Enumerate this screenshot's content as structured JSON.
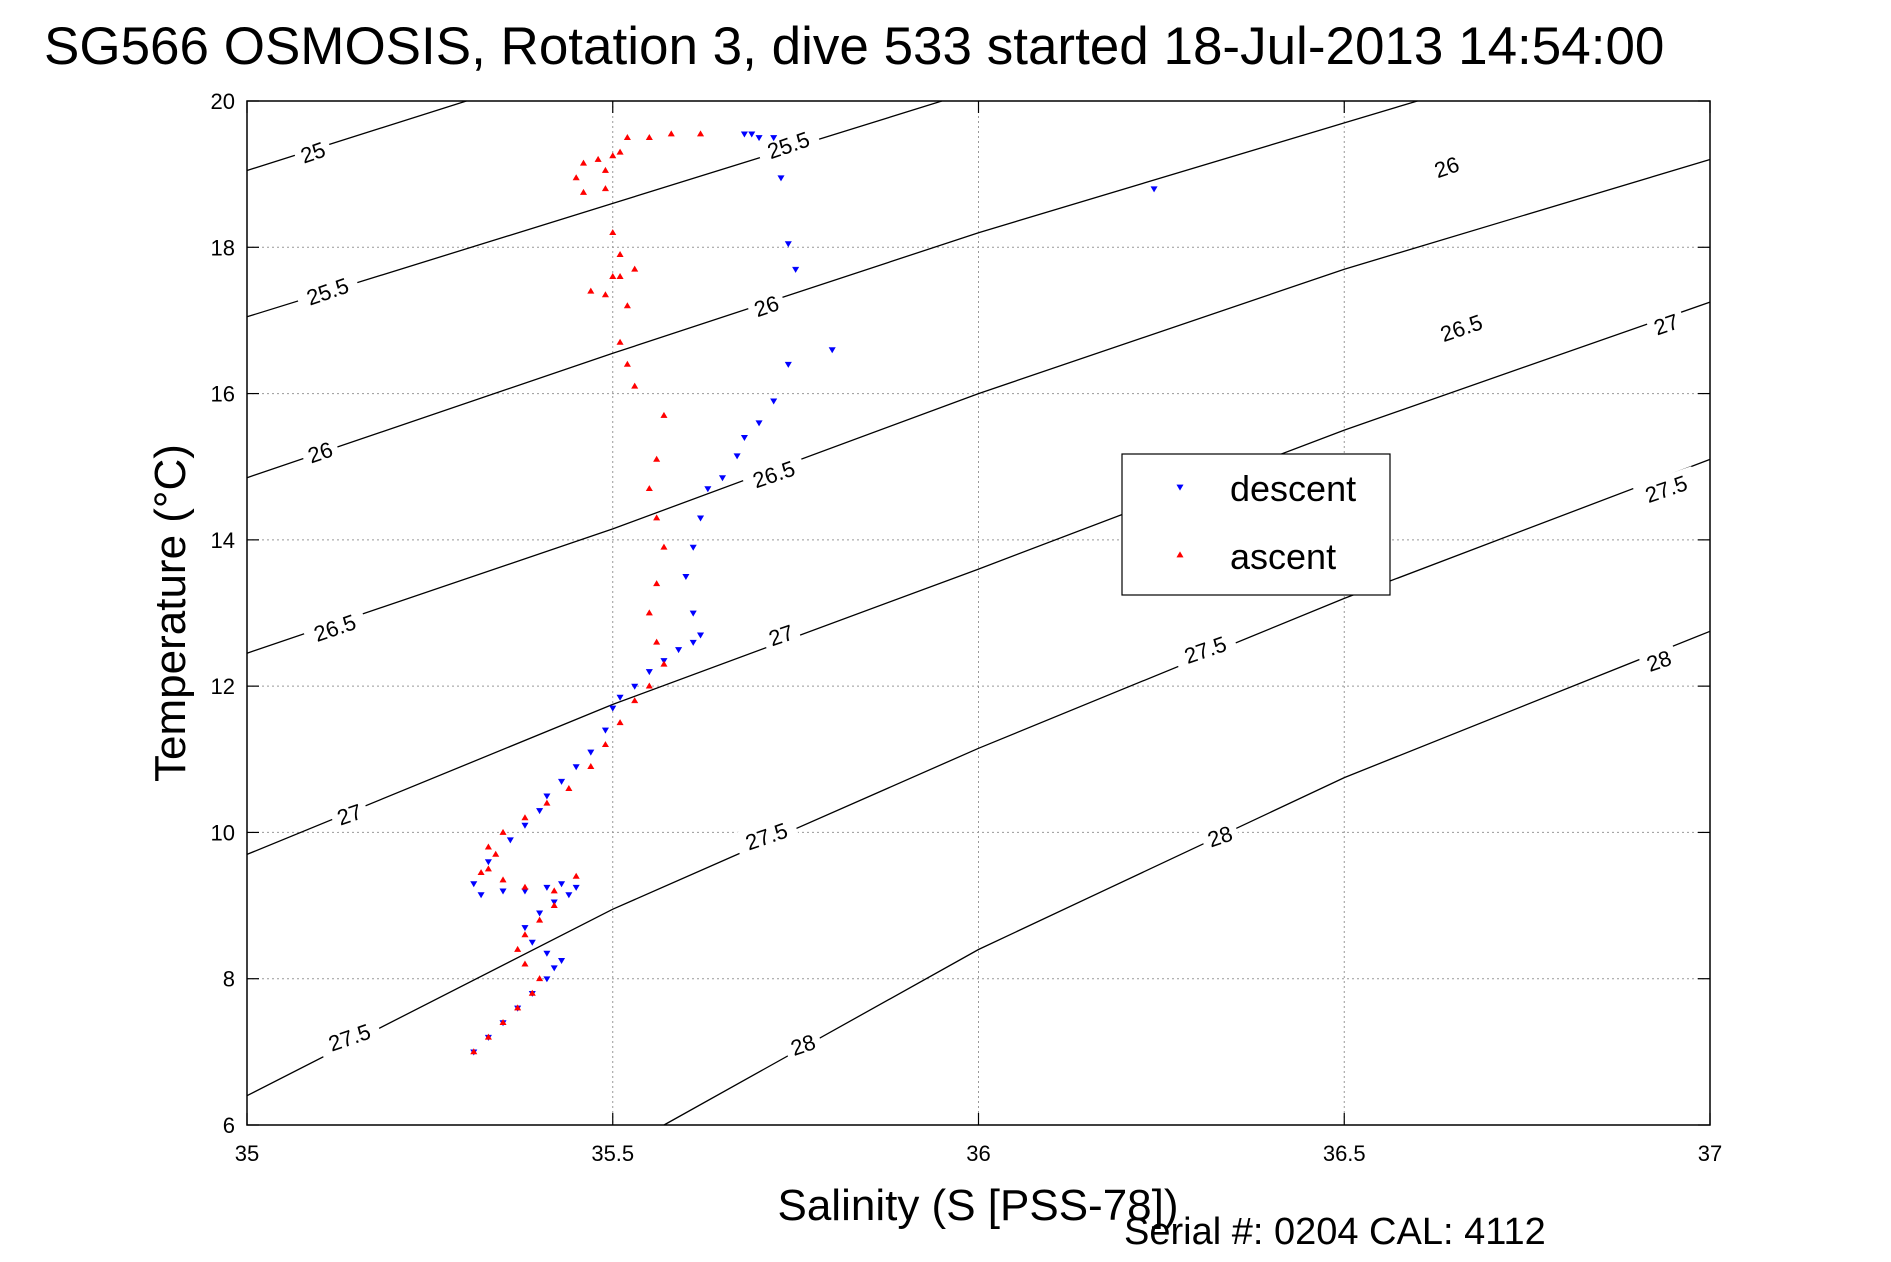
{
  "chart_data": {
    "type": "scatter",
    "title": "SG566 OSMOSIS, Rotation 3, dive 533 started 18-Jul-2013 14:54:00",
    "xlabel": "Salinity (S [PSS-78])",
    "ylabel": "Temperature (°C)",
    "footer": "Serial #: 0204  CAL: 4112",
    "xlim": [
      35,
      37
    ],
    "ylim": [
      6,
      20
    ],
    "xticks": [
      35,
      35.5,
      36,
      36.5,
      37
    ],
    "xtick_labels": [
      "35",
      "35.5",
      "36",
      "36.5",
      "37"
    ],
    "yticks": [
      6,
      8,
      10,
      12,
      14,
      16,
      18,
      20
    ],
    "ytick_labels": [
      "6",
      "8",
      "10",
      "12",
      "14",
      "16",
      "18",
      "20"
    ],
    "grid": true,
    "legend_position": "right",
    "colors": {
      "descent": "#0000ff",
      "ascent": "#ff0000",
      "contour": "#000000",
      "grid": "#999999"
    },
    "contours": [
      {
        "label": "25",
        "points": [
          [
            35.0,
            19.05
          ],
          [
            35.3,
            20.0
          ]
        ],
        "label_at": [
          [
            35.09,
            19.3
          ]
        ]
      },
      {
        "label": "25.5",
        "points": [
          [
            35.0,
            17.05
          ],
          [
            35.5,
            18.6
          ],
          [
            35.95,
            20.0
          ]
        ],
        "label_at": [
          [
            35.11,
            17.4
          ],
          [
            35.74,
            19.4
          ]
        ]
      },
      {
        "label": "26",
        "points": [
          [
            35.0,
            14.85
          ],
          [
            35.5,
            16.55
          ],
          [
            36.0,
            18.2
          ],
          [
            36.5,
            19.7
          ],
          [
            36.6,
            20.0
          ]
        ],
        "label_at": [
          [
            35.1,
            15.2
          ],
          [
            35.71,
            17.2
          ],
          [
            36.64,
            19.1
          ]
        ]
      },
      {
        "label": "26.5",
        "points": [
          [
            35.0,
            12.45
          ],
          [
            35.5,
            14.15
          ],
          [
            36.0,
            16.0
          ],
          [
            36.5,
            17.7
          ],
          [
            37.0,
            19.2
          ]
        ],
        "label_at": [
          [
            35.12,
            12.8
          ],
          [
            35.72,
            14.9
          ],
          [
            36.66,
            16.9
          ]
        ]
      },
      {
        "label": "27",
        "points": [
          [
            35.0,
            9.7
          ],
          [
            35.5,
            11.75
          ],
          [
            36.0,
            13.6
          ],
          [
            36.5,
            15.5
          ],
          [
            37.0,
            17.25
          ]
        ],
        "label_at": [
          [
            35.14,
            10.25
          ],
          [
            35.73,
            12.7
          ],
          [
            36.94,
            16.95
          ]
        ]
      },
      {
        "label": "27.5",
        "points": [
          [
            35.0,
            6.4
          ],
          [
            35.5,
            8.95
          ],
          [
            36.0,
            11.15
          ],
          [
            36.5,
            13.2
          ],
          [
            37.0,
            15.1
          ]
        ],
        "label_at": [
          [
            35.14,
            7.2
          ],
          [
            35.71,
            9.95
          ],
          [
            36.31,
            12.5
          ],
          [
            36.94,
            14.7
          ]
        ]
      },
      {
        "label": "28",
        "points": [
          [
            35.57,
            6.0
          ],
          [
            36.0,
            8.4
          ],
          [
            36.5,
            10.75
          ],
          [
            37.0,
            12.75
          ]
        ],
        "label_at": [
          [
            35.76,
            7.1
          ],
          [
            36.33,
            9.95
          ],
          [
            36.93,
            12.35
          ]
        ]
      }
    ],
    "series": [
      {
        "name": "descent",
        "marker": "triangle-down",
        "x": [
          35.31,
          35.33,
          35.35,
          35.37,
          35.39,
          35.41,
          35.42,
          35.43,
          35.41,
          35.39,
          35.38,
          35.4,
          35.42,
          35.44,
          35.45,
          35.43,
          35.41,
          35.38,
          35.35,
          35.32,
          35.31,
          35.33,
          35.36,
          35.38,
          35.4,
          35.41,
          35.43,
          35.45,
          35.47,
          35.49,
          35.5,
          35.51,
          35.53,
          35.55,
          35.57,
          35.59,
          35.61,
          35.62,
          35.61,
          35.6,
          35.61,
          35.62,
          35.63,
          35.65,
          35.67,
          35.68,
          35.7,
          35.72,
          35.74,
          35.75,
          35.8,
          35.74,
          35.73,
          35.72,
          35.69,
          35.68,
          35.7,
          36.24
        ],
        "y": [
          7.0,
          7.2,
          7.4,
          7.6,
          7.8,
          8.0,
          8.15,
          8.25,
          8.35,
          8.5,
          8.7,
          8.9,
          9.05,
          9.15,
          9.25,
          9.3,
          9.25,
          9.2,
          9.2,
          9.15,
          9.3,
          9.6,
          9.9,
          10.1,
          10.3,
          10.5,
          10.7,
          10.9,
          11.1,
          11.4,
          11.7,
          11.85,
          12.0,
          12.2,
          12.35,
          12.5,
          12.6,
          12.7,
          13.0,
          13.5,
          13.9,
          14.3,
          14.7,
          14.85,
          15.15,
          15.4,
          15.6,
          15.9,
          16.4,
          17.7,
          16.6,
          18.05,
          18.95,
          19.5,
          19.55,
          19.55,
          19.5,
          18.8
        ]
      },
      {
        "name": "ascent",
        "marker": "triangle-up",
        "x": [
          35.31,
          35.33,
          35.35,
          35.37,
          35.39,
          35.4,
          35.38,
          35.37,
          35.38,
          35.4,
          35.42,
          35.45,
          35.42,
          35.38,
          35.35,
          35.33,
          35.34,
          35.32,
          35.33,
          35.35,
          35.38,
          35.41,
          35.44,
          35.47,
          35.49,
          35.51,
          35.53,
          35.55,
          35.57,
          35.56,
          35.55,
          35.56,
          35.57,
          35.56,
          35.55,
          35.56,
          35.57,
          35.53,
          35.52,
          35.51,
          35.52,
          35.5,
          35.51,
          35.5,
          35.46,
          35.45,
          35.49,
          35.51,
          35.49,
          35.5,
          35.52,
          35.46,
          35.48,
          35.47,
          35.49,
          35.51,
          35.53,
          35.55,
          35.58,
          35.62
        ],
        "y": [
          7.0,
          7.2,
          7.4,
          7.6,
          7.8,
          8.0,
          8.2,
          8.4,
          8.6,
          8.8,
          9.0,
          9.4,
          9.2,
          9.25,
          9.35,
          9.5,
          9.7,
          9.45,
          9.8,
          10.0,
          10.2,
          10.4,
          10.6,
          10.9,
          11.2,
          11.5,
          11.8,
          12.0,
          12.3,
          12.6,
          13.0,
          13.4,
          13.9,
          14.3,
          14.7,
          15.1,
          15.7,
          16.1,
          16.4,
          16.7,
          17.2,
          17.6,
          17.9,
          18.2,
          18.75,
          18.95,
          18.8,
          19.3,
          19.05,
          19.25,
          19.5,
          19.15,
          19.2,
          17.4,
          17.35,
          17.6,
          17.7,
          19.5,
          19.55,
          19.55
        ]
      }
    ]
  }
}
